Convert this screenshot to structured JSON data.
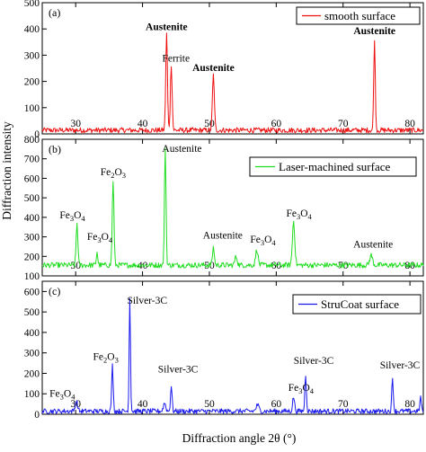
{
  "chart_data": [
    {
      "type": "line",
      "panel_label": "(a)",
      "xlim": [
        25,
        82
      ],
      "ylim": [
        0,
        500
      ],
      "x_ticks": [
        30,
        40,
        50,
        60,
        70,
        80
      ],
      "y_ticks": [
        0,
        100,
        200,
        300,
        400,
        500
      ],
      "legend_position": "top-right",
      "series": [
        {
          "name": "smooth surface",
          "color": "#ee1111",
          "baseline": 14,
          "noise": 10,
          "peaks": [
            {
              "x": 43.6,
              "y": 380,
              "w": 0.18
            },
            {
              "x": 44.3,
              "y": 265,
              "w": 0.18
            },
            {
              "x": 50.6,
              "y": 225,
              "w": 0.2
            },
            {
              "x": 74.7,
              "y": 365,
              "w": 0.16
            }
          ]
        }
      ],
      "annotations": [
        {
          "text": "Austenite",
          "x": 43.6,
          "y": 395,
          "bold": true
        },
        {
          "text": "Ferrite",
          "x": 45.0,
          "y": 275,
          "bold": false
        },
        {
          "text": "Austenite",
          "x": 50.6,
          "y": 240,
          "bold": true
        },
        {
          "text": "Austenite",
          "x": 74.7,
          "y": 380,
          "bold": true
        }
      ]
    },
    {
      "type": "line",
      "panel_label": "(b)",
      "xlim": [
        25,
        82
      ],
      "ylim": [
        100,
        800
      ],
      "x_ticks": [
        30,
        40,
        50,
        60,
        70,
        80
      ],
      "y_ticks": [
        100,
        200,
        300,
        400,
        500,
        600,
        700,
        800
      ],
      "legend_position": "top-right",
      "series": [
        {
          "name": "Laser-machined surface",
          "color": "#22dd22",
          "baseline": 155,
          "noise": 14,
          "peaks": [
            {
              "x": 30.2,
              "y": 370,
              "w": 0.18
            },
            {
              "x": 33.2,
              "y": 225,
              "w": 0.15
            },
            {
              "x": 35.6,
              "y": 590,
              "w": 0.18
            },
            {
              "x": 43.4,
              "y": 765,
              "w": 0.16
            },
            {
              "x": 50.6,
              "y": 245,
              "w": 0.2
            },
            {
              "x": 54.0,
              "y": 200,
              "w": 0.25
            },
            {
              "x": 57.1,
              "y": 235,
              "w": 0.25
            },
            {
              "x": 62.6,
              "y": 380,
              "w": 0.25
            },
            {
              "x": 74.2,
              "y": 205,
              "w": 0.3
            }
          ]
        }
      ],
      "annotations": [
        {
          "text": "Fe3O4",
          "x": 29.5,
          "y": 395
        },
        {
          "text": "Fe3O4",
          "x": 33.6,
          "y": 285
        },
        {
          "text": "Fe2O3",
          "x": 35.6,
          "y": 615
        },
        {
          "text": "Austenite",
          "x": 45.9,
          "y": 735
        },
        {
          "text": "Austenite",
          "x": 52.0,
          "y": 290
        },
        {
          "text": "Fe3O4",
          "x": 58.0,
          "y": 270
        },
        {
          "text": "Fe3O4",
          "x": 63.4,
          "y": 405
        },
        {
          "text": "Austenite",
          "x": 74.5,
          "y": 245
        }
      ]
    },
    {
      "type": "line",
      "panel_label": "(c)",
      "xlim": [
        25,
        82
      ],
      "ylim": [
        0,
        650
      ],
      "x_ticks": [
        30,
        40,
        50,
        60,
        70,
        80
      ],
      "y_ticks": [
        0,
        100,
        200,
        300,
        400,
        500,
        600
      ],
      "legend_position": "top-right",
      "series": [
        {
          "name": "StruCoat surface",
          "color": "#1a1aee",
          "baseline": 15,
          "noise": 12,
          "peaks": [
            {
              "x": 30.1,
              "y": 65,
              "w": 0.25
            },
            {
              "x": 35.5,
              "y": 240,
              "w": 0.16
            },
            {
              "x": 38.1,
              "y": 570,
              "w": 0.14
            },
            {
              "x": 43.3,
              "y": 55,
              "w": 0.25
            },
            {
              "x": 44.3,
              "y": 140,
              "w": 0.16
            },
            {
              "x": 57.2,
              "y": 45,
              "w": 0.3
            },
            {
              "x": 62.6,
              "y": 85,
              "w": 0.2
            },
            {
              "x": 64.4,
              "y": 195,
              "w": 0.16
            },
            {
              "x": 77.4,
              "y": 175,
              "w": 0.16
            },
            {
              "x": 81.6,
              "y": 85,
              "w": 0.15
            }
          ]
        }
      ],
      "annotations": [
        {
          "text": "Silver-3C",
          "x": 40.7,
          "y": 540
        },
        {
          "text": "Fe2O3",
          "x": 34.5,
          "y": 265
        },
        {
          "text": "Fe3O4",
          "x": 28.0,
          "y": 85
        },
        {
          "text": "Silver-3C",
          "x": 45.3,
          "y": 205
        },
        {
          "text": "Silver-3C",
          "x": 65.6,
          "y": 245
        },
        {
          "text": "Fe3O4",
          "x": 63.7,
          "y": 115
        },
        {
          "text": "Silver-3C",
          "x": 78.5,
          "y": 225
        }
      ]
    }
  ],
  "axes": {
    "xlabel": "Diffraction angle 2θ (°)",
    "ylabel": "Diffraction intensity"
  }
}
